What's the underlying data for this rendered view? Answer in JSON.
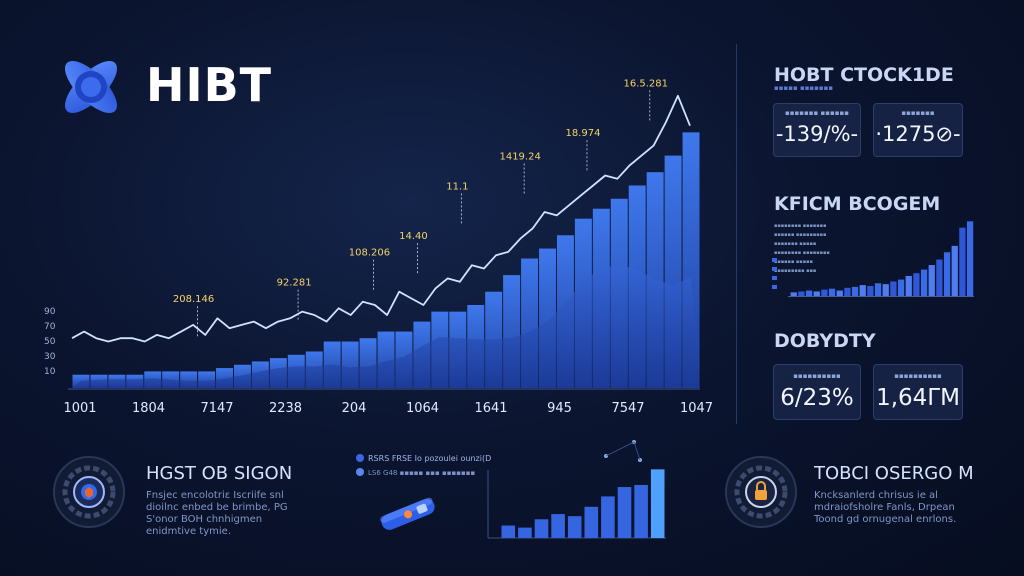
{
  "brand": {
    "name": "HIBT"
  },
  "chart_data": [
    {
      "type": "area",
      "categories": [
        "1001",
        "1804",
        "7147",
        "2238",
        "204",
        "1064",
        "1641",
        "945",
        "7547",
        "1047"
      ],
      "y_ticks": [
        "90",
        "70",
        "50",
        "30",
        "10"
      ],
      "ylim": [
        0,
        100
      ],
      "bars": [
        4,
        4,
        4,
        4,
        5,
        5,
        5,
        5,
        6,
        7,
        8,
        9,
        10,
        11,
        14,
        14,
        15,
        17,
        17,
        20,
        23,
        23,
        25,
        29,
        34,
        39,
        42,
        46,
        51,
        54,
        57,
        61,
        65,
        70,
        77
      ],
      "line": [
        15,
        17,
        15,
        14,
        15,
        15,
        14,
        16,
        15,
        17,
        19,
        16,
        21,
        18,
        19,
        20,
        18,
        20,
        21,
        23,
        22,
        20,
        24,
        22,
        26,
        25,
        22,
        29,
        27,
        25,
        30,
        33,
        32,
        37,
        36,
        40,
        41,
        45,
        48,
        53,
        52,
        55,
        58,
        61,
        64,
        63,
        67,
        70,
        73,
        80,
        88,
        79
      ],
      "annotations": [
        {
          "label": "208.146",
          "at": 0.2,
          "value": 15
        },
        {
          "label": "92.281",
          "at": 0.36,
          "value": 20
        },
        {
          "label": "108.206",
          "at": 0.48,
          "value": 29
        },
        {
          "label": "14.40",
          "at": 0.55,
          "value": 34
        },
        {
          "label": "11.1",
          "at": 0.62,
          "value": 49
        },
        {
          "label": "1419.24",
          "at": 0.72,
          "value": 58
        },
        {
          "label": "18.974",
          "at": 0.82,
          "value": 65
        },
        {
          "label": "16.5.281",
          "at": 0.92,
          "value": 80
        }
      ]
    },
    {
      "type": "bar",
      "title": "KFICM BCOGEM",
      "values": [
        4,
        5,
        6,
        5,
        7,
        8,
        6,
        9,
        10,
        12,
        11,
        14,
        13,
        16,
        18,
        22,
        25,
        29,
        34,
        40,
        48,
        55,
        75,
        82
      ],
      "ylim": [
        0,
        90
      ]
    },
    {
      "type": "bar",
      "values": [
        12,
        10,
        18,
        23,
        21,
        30,
        40,
        49,
        51,
        66
      ],
      "ylim": [
        0,
        75
      ]
    }
  ],
  "panels": {
    "stock": {
      "title": "HOBT CTOCK1DE",
      "subtitle": "▪▪▪▪▪ ▪▪▪▪▪▪▪",
      "cards": [
        {
          "label": "▪▪▪▪▪▪▪ ▪▪▪▪▪▪",
          "value": "-139/%-"
        },
        {
          "label": "▪▪▪▪▪▪▪",
          "value": "·1275⊘-"
        }
      ]
    },
    "mini": {
      "legend": [
        "▪▪▪▪▪▪▪▪ ▪▪▪▪▪▪▪",
        "▪▪▪▪▪▪ ▪▪▪▪▪▪▪▪▪",
        "▪▪▪▪▪▪▪ ▪▪▪▪▪",
        "▪▪▪▪▪▪▪▪ ▪▪▪▪▪▪▪▪",
        "▪▪▪▪▪▪ ▪▪▪▪▪",
        "▪▪▪▪▪▪▪▪▪ ▪▪▪"
      ],
      "legend_colors": [
        "#2f58d8",
        "#4f7cf0",
        "#2f58d8",
        "#6a90f4",
        "#2f58d8",
        "#4f7cf0"
      ]
    },
    "density": {
      "title": "DOBYDTY",
      "cards": [
        {
          "label": "▪▪▪▪▪▪▪▪▪▪",
          "value": "6/23%"
        },
        {
          "label": "▪▪▪▪▪▪▪▪▪▪",
          "value": "1,64ΓM"
        }
      ]
    }
  },
  "footer": {
    "left": {
      "title": "HGST OB SIGON",
      "desc": "Fnsjec encolotriε Iscriife snl dioilnc enbed be brimbe, PG S'onor BOH chnhigmen enidmtive tymie."
    },
    "center": {
      "legend": [
        "RSRS FRSE Io pozoulei ounzi(D",
        "LS6 G48 ▪▪▪▪▪ ▪▪▪ ▪▪▪▪▪▪▪"
      ],
      "legend_colors": [
        "#3a66e8",
        "#5a86f2"
      ]
    },
    "right": {
      "title": "TOBCI OSERGO M",
      "desc": "Kncksanlerd chrisus ie al mdraiofsholre Fanls, Drpean Toond gd ornugenal enrlons."
    }
  },
  "colors": {
    "accent": "#2f6bf0",
    "bar_light": "#3f78ec",
    "bar_dark": "#1e3f9e",
    "line": "#cfe2ff",
    "annotation": "#f3d36b",
    "background": "#0b1530"
  },
  "icons": {
    "logo": "hibt-logo-icon",
    "left_ring": "shield-ring-icon",
    "right_ring": "lock-ring-icon",
    "usb": "usb-key-icon"
  }
}
